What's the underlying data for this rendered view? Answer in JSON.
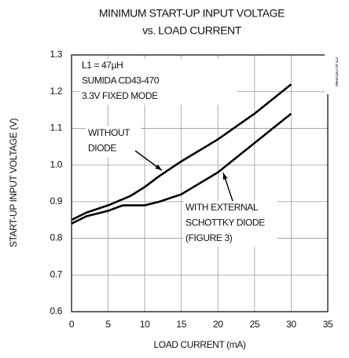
{
  "chart_data": {
    "type": "line",
    "title": "MINIMUM START-UP INPUT VOLTAGE",
    "subtitle": "vs. LOAD CURRENT",
    "xlabel": "LOAD CURRENT (mA)",
    "ylabel": "START-UP INPUT VOLTAGE (V)",
    "xlim": [
      0,
      35
    ],
    "xticks": [
      0,
      5,
      10,
      15,
      20,
      25,
      30,
      35
    ],
    "ylim": [
      0.6,
      1.3
    ],
    "yticks": [
      0.6,
      0.7,
      0.8,
      0.9,
      {
        "value": 1,
        "label": "1.0"
      },
      1.1,
      1.2,
      1.3
    ],
    "grid": true,
    "series": [
      {
        "name": "WITHOUT DIODE",
        "color": "#000000",
        "x": [
          0,
          2,
          5,
          8,
          10,
          12,
          15,
          20,
          25,
          30
        ],
        "values": [
          0.85,
          0.87,
          0.89,
          0.915,
          0.94,
          0.97,
          1.01,
          1.07,
          1.14,
          1.22
        ]
      },
      {
        "name": "WITH EXTERNAL SCHOTTKY DIODE",
        "color": "#000000",
        "x": [
          0,
          2,
          5,
          7,
          10,
          12,
          15,
          20,
          25,
          30
        ],
        "values": [
          0.84,
          0.86,
          0.875,
          0.89,
          0.89,
          0.9,
          0.92,
          0.98,
          1.06,
          1.14
        ]
      }
    ],
    "annotations": [
      [
        "L1 = 47µH",
        "SUMIDA CD43-470",
        "3.3V FIXED MODE"
      ],
      [
        "WITHOUT",
        "DIODE"
      ],
      [
        "WITH EXTERNAL",
        "SCHOTTKY DIODE",
        "(FIGURE 3)"
      ]
    ],
    "side_label": "MAX1678-15"
  }
}
